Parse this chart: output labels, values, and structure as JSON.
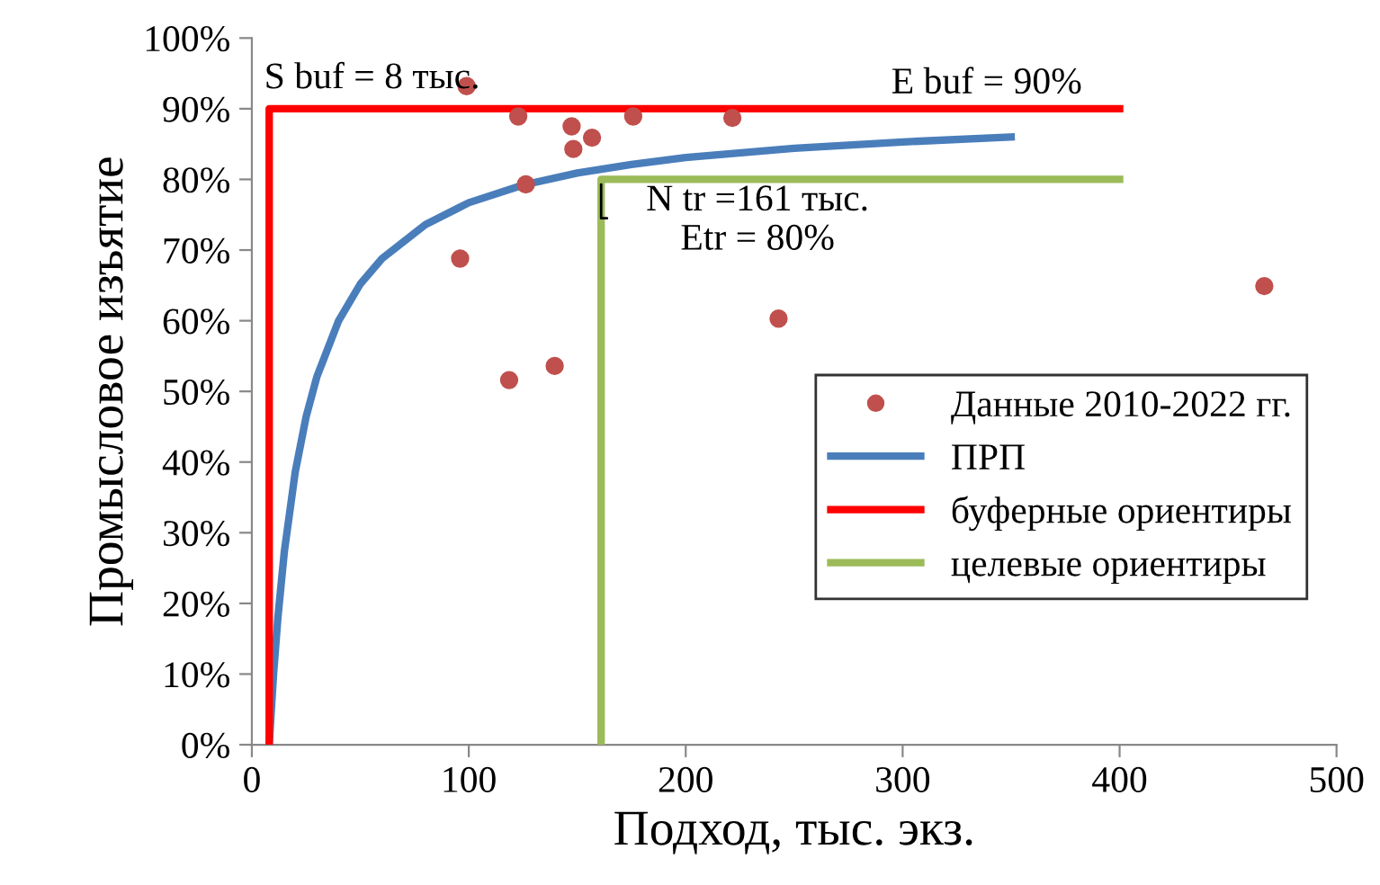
{
  "chart_data": {
    "type": "scatter",
    "xlabel": "Подход, тыс. экз.",
    "ylabel": "Промысловое изъятие",
    "xlim": [
      0,
      500
    ],
    "xticks": [
      0,
      100,
      200,
      300,
      400,
      500
    ],
    "ylim": [
      0,
      100
    ],
    "yticks": [
      {
        "value": 0,
        "label": "0%"
      },
      {
        "value": 10,
        "label": "10%"
      },
      {
        "value": 20,
        "label": "20%"
      },
      {
        "value": 30,
        "label": "30%"
      },
      {
        "value": 40,
        "label": "40%"
      },
      {
        "value": 50,
        "label": "50%"
      },
      {
        "value": 60,
        "label": "60%"
      },
      {
        "value": 70,
        "label": "70%"
      },
      {
        "value": 80,
        "label": "80%"
      },
      {
        "value": 90,
        "label": "90%"
      },
      {
        "value": 100,
        "label": "100%"
      }
    ],
    "grid": false,
    "legend": "bottom right",
    "series": [
      {
        "name": "Данные 2010-2022 гг.",
        "marker": "circle",
        "color": "#c0504d",
        "x": [
          99,
          122.8,
          147.4,
          156.8,
          148.2,
          175.8,
          221.5,
          126.3,
          96,
          242.8,
          118.6,
          139.6,
          466.7
        ],
        "values": [
          93.2,
          88.9,
          87.5,
          85.9,
          84.3,
          88.9,
          88.7,
          79.3,
          68.8,
          60.3,
          51.6,
          53.6,
          64.9
        ]
      },
      {
        "name": "ПРП",
        "type": "line",
        "color": "#4a7ebb",
        "x": [
          8,
          10,
          12,
          15,
          20,
          25,
          30,
          40,
          50,
          60,
          80,
          100,
          125,
          150,
          175,
          200,
          250,
          300,
          350
        ],
        "values": [
          0,
          10,
          18,
          27.4,
          38.6,
          46.4,
          52.1,
          60,
          65.2,
          68.8,
          73.6,
          76.7,
          79.2,
          80.9,
          82.1,
          83.1,
          84.4,
          85.3,
          86
        ]
      },
      {
        "name": "буферные ориентиры",
        "type": "line",
        "color": "#ff0000",
        "x": [
          8,
          8,
          400
        ],
        "values": [
          0,
          90,
          90
        ]
      },
      {
        "name": "целевые ориентиры",
        "type": "line",
        "color": "#9bbb59",
        "x": [
          161,
          161,
          400
        ],
        "values": [
          0,
          80,
          80
        ]
      }
    ],
    "annotations": [
      {
        "text": "S buf = 8 тыс.",
        "x": 8,
        "y": 90
      },
      {
        "text": "E buf = 90%",
        "x": 400,
        "y": 90
      },
      {
        "text": "N tr =161 тыс.\nEtr = 80%",
        "x": 161,
        "y": 80
      }
    ]
  }
}
